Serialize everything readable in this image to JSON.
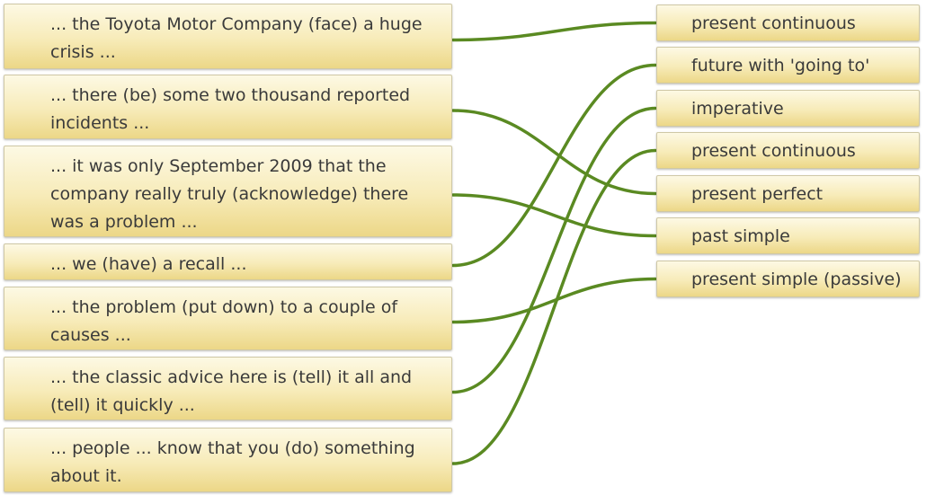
{
  "left_items": [
    {
      "text": "... the Toyota Motor Company (face) a huge crisis ..."
    },
    {
      "text": "... there (be) some two thousand reported incidents ..."
    },
    {
      "text": "... it was only September 2009 that the company really truly (acknowledge) there was a problem ..."
    },
    {
      "text": "... we (have) a recall ..."
    },
    {
      "text": "... the problem (put down) to a couple of causes ..."
    },
    {
      "text": "... the classic advice here is (tell) it all and (tell) it quickly ..."
    },
    {
      "text": "... people ... know that you (do) something about it."
    }
  ],
  "right_items": [
    {
      "text": "present continuous"
    },
    {
      "text": "future with 'going to'"
    },
    {
      "text": "imperative"
    },
    {
      "text": "present continuous"
    },
    {
      "text": "present perfect"
    },
    {
      "text": "past simple"
    },
    {
      "text": "present simple (passive)"
    }
  ],
  "connections": [
    {
      "left": 0,
      "right": 0
    },
    {
      "left": 1,
      "right": 4
    },
    {
      "left": 2,
      "right": 5
    },
    {
      "left": 3,
      "right": 1
    },
    {
      "left": 4,
      "right": 6
    },
    {
      "left": 5,
      "right": 2
    },
    {
      "left": 6,
      "right": 3
    }
  ],
  "colors": {
    "line": "#5a8a22",
    "box_top": "#fdf9e4",
    "box_bottom": "#ecd787"
  }
}
